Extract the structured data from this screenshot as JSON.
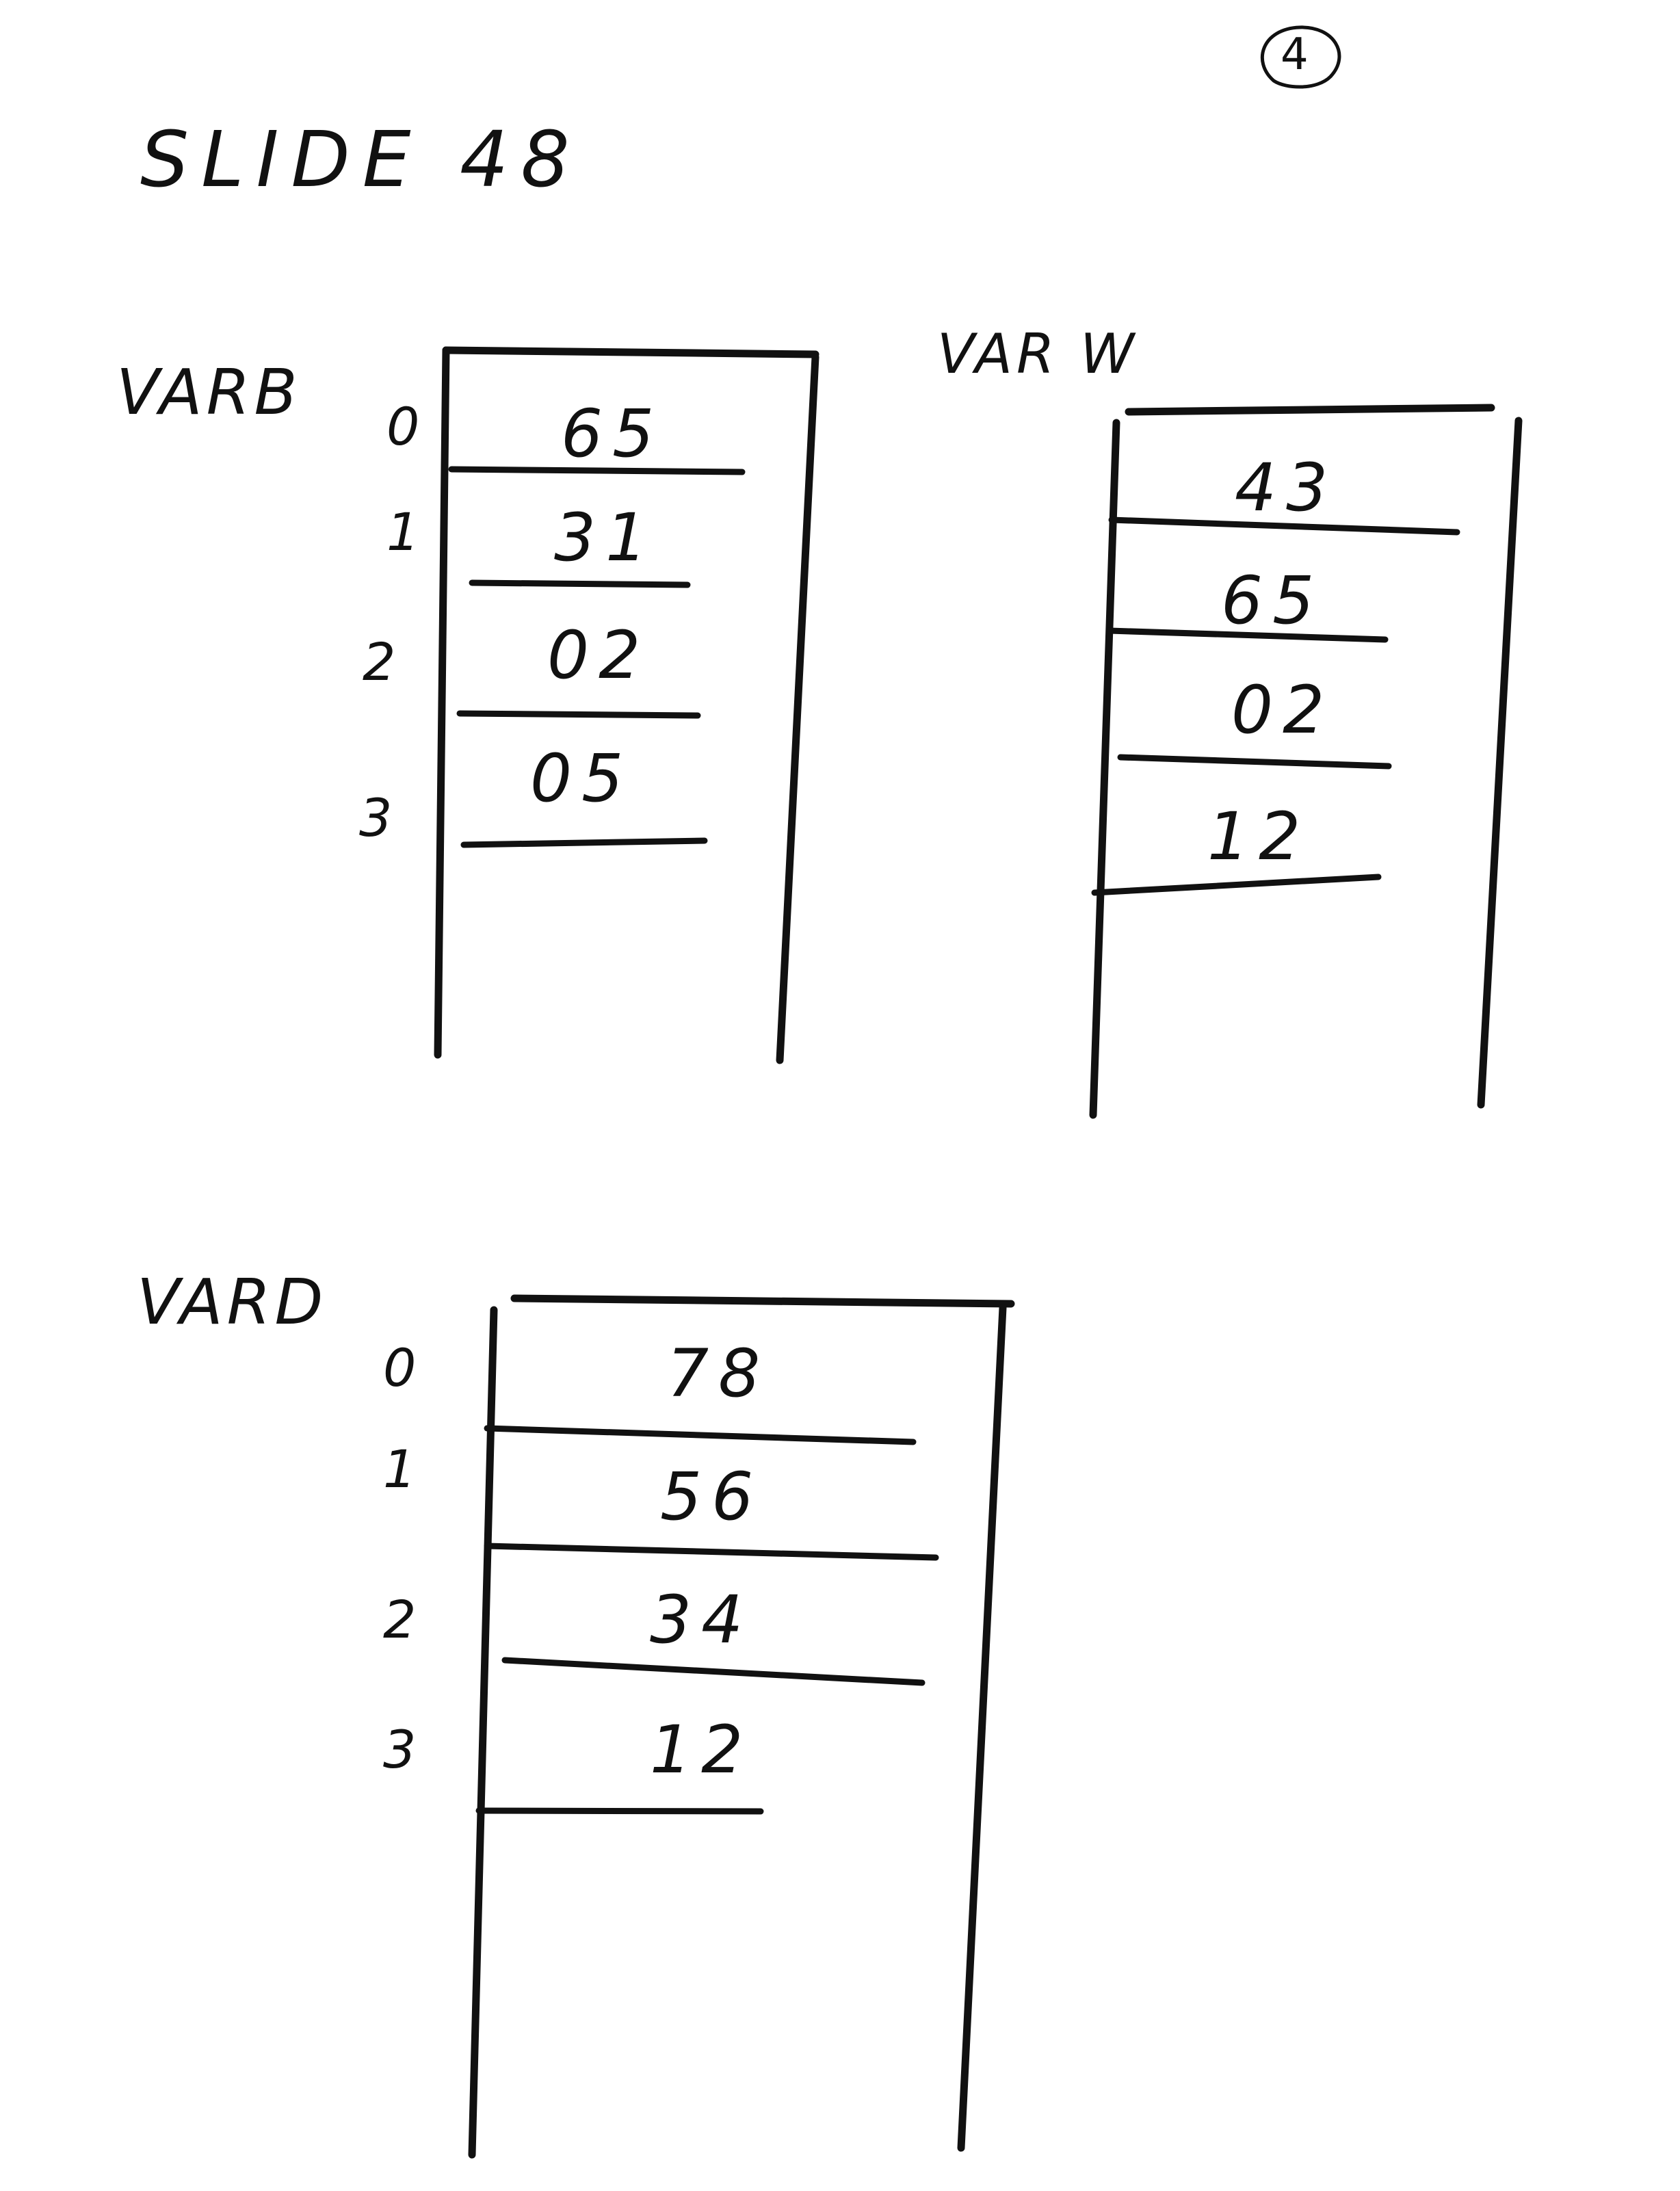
{
  "page_number": "4",
  "title": "SLIDE 48",
  "arrays": [
    {
      "label": "VARB",
      "indices": [
        "0",
        "1",
        "2",
        "3"
      ],
      "cells": [
        "65",
        "31",
        "02",
        "05"
      ]
    },
    {
      "label": "VAR W",
      "cells": [
        "43",
        "65",
        "02",
        "12"
      ]
    },
    {
      "label": "VARD",
      "indices": [
        "0",
        "1",
        "2",
        "3"
      ],
      "cells": [
        "78",
        "56",
        "34",
        "12"
      ]
    }
  ]
}
